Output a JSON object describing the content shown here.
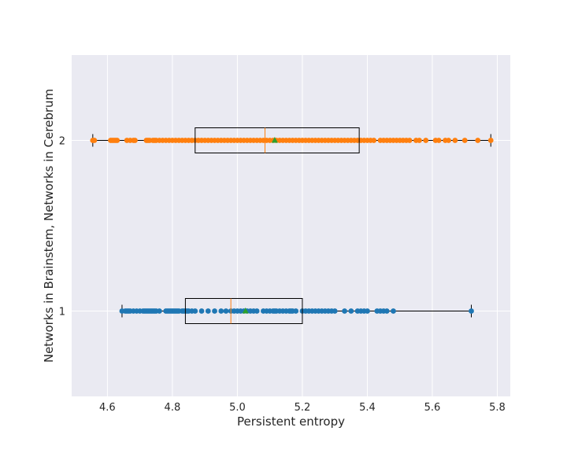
{
  "chart_data": {
    "type": "box",
    "orientation": "horizontal",
    "xlabel": "Persistent entropy",
    "ylabel": "Networks in Brainstem, Networks in Cerebrum",
    "xlim": [
      4.49,
      5.84
    ],
    "ylim": [
      0.5,
      2.5
    ],
    "xticks": [
      4.6,
      4.8,
      5.0,
      5.2,
      5.4,
      5.6,
      5.8
    ],
    "xtick_labels": [
      "4.6",
      "4.8",
      "5.0",
      "5.2",
      "5.4",
      "5.6",
      "5.8"
    ],
    "yticks": [
      1,
      2
    ],
    "ytick_labels": [
      "1",
      "2"
    ],
    "grid": true,
    "style": "seaborn-darkgrid",
    "colors": {
      "background": "#eaeaf2",
      "grid": "#ffffff",
      "box": "#000000",
      "median": "#ff7f0e",
      "mean_marker": "#2ca02c",
      "series_1_points": "#1f77b4",
      "series_2_points": "#ff7f0e"
    },
    "series": [
      {
        "position": 1,
        "whisker_low": 4.645,
        "q1": 4.84,
        "median": 4.98,
        "mean": 5.025,
        "q3": 5.2,
        "whisker_high": 5.72,
        "points": [
          4.645,
          4.655,
          4.66,
          4.665,
          4.67,
          4.68,
          4.69,
          4.7,
          4.71,
          4.715,
          4.72,
          4.725,
          4.73,
          4.735,
          4.74,
          4.745,
          4.75,
          4.76,
          4.78,
          4.785,
          4.79,
          4.795,
          4.8,
          4.805,
          4.81,
          4.815,
          4.82,
          4.83,
          4.835,
          4.84,
          4.845,
          4.85,
          4.86,
          4.87,
          4.89,
          4.91,
          4.93,
          4.95,
          4.965,
          4.98,
          4.99,
          5.0,
          5.01,
          5.02,
          5.03,
          5.04,
          5.05,
          5.06,
          5.08,
          5.09,
          5.1,
          5.11,
          5.115,
          5.12,
          5.13,
          5.14,
          5.15,
          5.16,
          5.165,
          5.17,
          5.18,
          5.2,
          5.21,
          5.22,
          5.23,
          5.24,
          5.25,
          5.26,
          5.27,
          5.28,
          5.29,
          5.3,
          5.33,
          5.35,
          5.37,
          5.38,
          5.39,
          5.4,
          5.43,
          5.44,
          5.45,
          5.46,
          5.48,
          5.72
        ]
      },
      {
        "position": 2,
        "whisker_low": 4.555,
        "q1": 4.87,
        "median": 5.085,
        "mean": 5.115,
        "q3": 5.375,
        "whisker_high": 5.78,
        "points": [
          4.555,
          4.56,
          4.61,
          4.615,
          4.62,
          4.625,
          4.63,
          4.66,
          4.67,
          4.68,
          4.685,
          4.72,
          4.725,
          4.73,
          4.74,
          4.745,
          4.75,
          4.76,
          4.77,
          4.78,
          4.79,
          4.8,
          4.81,
          4.82,
          4.83,
          4.84,
          4.85,
          4.86,
          4.87,
          4.88,
          4.89,
          4.9,
          4.91,
          4.92,
          4.93,
          4.94,
          4.95,
          4.96,
          4.97,
          4.98,
          4.99,
          5.0,
          5.01,
          5.02,
          5.03,
          5.04,
          5.05,
          5.06,
          5.07,
          5.08,
          5.09,
          5.1,
          5.11,
          5.12,
          5.13,
          5.14,
          5.15,
          5.16,
          5.17,
          5.18,
          5.19,
          5.2,
          5.21,
          5.22,
          5.23,
          5.24,
          5.25,
          5.26,
          5.27,
          5.28,
          5.29,
          5.3,
          5.31,
          5.32,
          5.33,
          5.34,
          5.35,
          5.36,
          5.37,
          5.38,
          5.39,
          5.4,
          5.41,
          5.42,
          5.44,
          5.45,
          5.46,
          5.47,
          5.48,
          5.49,
          5.5,
          5.51,
          5.52,
          5.53,
          5.55,
          5.56,
          5.58,
          5.61,
          5.62,
          5.64,
          5.65,
          5.67,
          5.7,
          5.74,
          5.78
        ]
      }
    ]
  }
}
